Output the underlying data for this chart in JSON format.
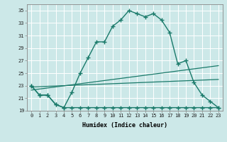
{
  "xlabel": "Humidex (Indice chaleur)",
  "xlim": [
    -0.5,
    23.5
  ],
  "ylim": [
    19,
    36
  ],
  "yticks": [
    19,
    21,
    23,
    25,
    27,
    29,
    31,
    33,
    35
  ],
  "xticks": [
    0,
    1,
    2,
    3,
    4,
    5,
    6,
    7,
    8,
    9,
    10,
    11,
    12,
    13,
    14,
    15,
    16,
    17,
    18,
    19,
    20,
    21,
    22,
    23
  ],
  "background_color": "#cce8e8",
  "grid_color": "#ffffff",
  "line_color": "#1a7a6a",
  "line1_x": [
    0,
    1,
    2,
    3,
    4,
    5,
    6,
    7,
    8,
    9,
    10,
    11,
    12,
    13,
    14,
    15,
    16,
    17,
    18,
    19,
    20,
    21,
    22,
    23
  ],
  "line1_y": [
    23.0,
    21.5,
    21.5,
    20.0,
    19.5,
    22.0,
    25.0,
    27.5,
    30.0,
    30.0,
    32.5,
    33.5,
    35.0,
    34.5,
    34.0,
    34.5,
    33.5,
    31.5,
    26.5,
    27.0,
    23.5,
    21.5,
    20.5,
    19.5
  ],
  "line2_x": [
    0,
    1,
    2,
    3,
    4,
    5,
    6,
    7,
    8,
    9,
    10,
    11,
    12,
    13,
    14,
    15,
    16,
    17,
    18,
    19,
    20,
    21,
    22,
    23
  ],
  "line2_y": [
    23.0,
    21.5,
    21.5,
    20.0,
    19.5,
    19.5,
    19.5,
    19.5,
    19.5,
    19.5,
    19.5,
    19.5,
    19.5,
    19.5,
    19.5,
    19.5,
    19.5,
    19.5,
    19.5,
    19.5,
    19.5,
    19.5,
    19.5,
    19.5
  ],
  "line3_x": [
    0,
    23
  ],
  "line3_y": [
    22.3,
    26.2
  ],
  "line4_x": [
    0,
    23
  ],
  "line4_y": [
    22.8,
    24.0
  ]
}
